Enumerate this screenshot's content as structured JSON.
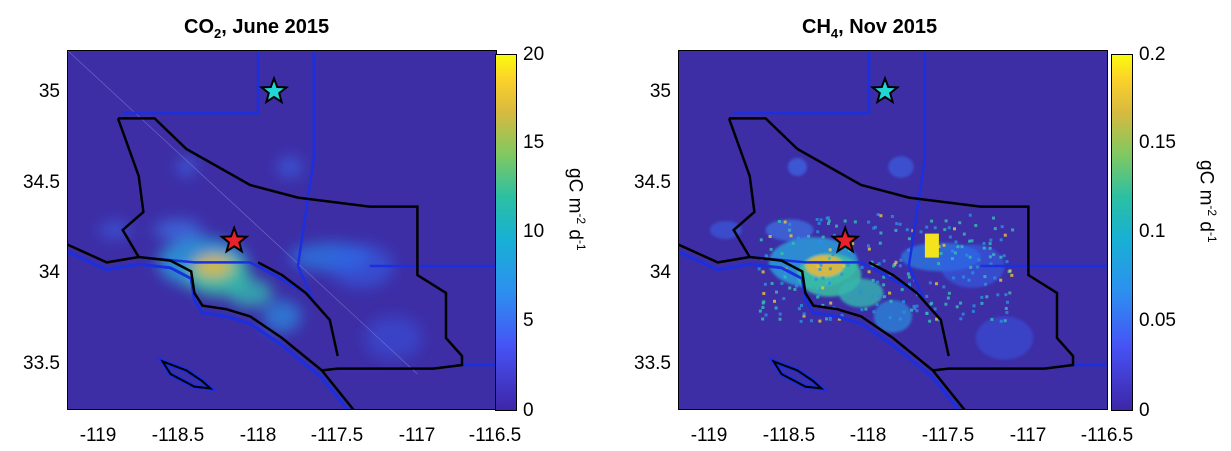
{
  "chart_data": [
    {
      "type": "heatmap",
      "title": "CO₂, June 2015",
      "title_main": "CO",
      "title_sub": "2",
      "title_rest": ", June 2015",
      "xlabel": "",
      "ylabel": "",
      "xlim": [
        -119.2,
        -116.5
      ],
      "ylim": [
        33.2,
        35.2
      ],
      "x_ticks": [
        "-119",
        "-118.5",
        "-118",
        "-117.5",
        "-117",
        "-116.5"
      ],
      "y_ticks": [
        "35",
        "34.5",
        "34",
        "33.5"
      ],
      "colorbar": {
        "ticks": [
          "20",
          "15",
          "10",
          "5",
          "0"
        ],
        "range": [
          0,
          20
        ],
        "label": "gC m-2 d-1",
        "label_parts": [
          "gC m",
          "-2",
          " d",
          "-1"
        ]
      },
      "markers": [
        {
          "name": "red-star",
          "lon": -118.15,
          "lat": 34.14,
          "color": "#e8222a"
        },
        {
          "name": "cyan-star",
          "lon": -117.9,
          "lat": 34.97,
          "color": "#22d6d6"
        }
      ]
    },
    {
      "type": "heatmap",
      "title": "CH₄, Nov 2015",
      "title_main": "CH",
      "title_sub": "4",
      "title_rest": ", Nov 2015",
      "xlabel": "",
      "ylabel": "",
      "xlim": [
        -119.2,
        -116.5
      ],
      "ylim": [
        33.2,
        35.2
      ],
      "x_ticks": [
        "-119",
        "-118.5",
        "-118",
        "-117.5",
        "-117",
        "-116.5"
      ],
      "y_ticks": [
        "35",
        "34.5",
        "34",
        "33.5"
      ],
      "colorbar": {
        "ticks": [
          "0.2",
          "0.15",
          "0.1",
          "0.05",
          "0"
        ],
        "range": [
          0,
          0.2
        ],
        "label": "gC m-2 d-1",
        "label_parts": [
          "gC m",
          "-2",
          " d",
          "-1"
        ]
      },
      "markers": [
        {
          "name": "red-star",
          "lon": -118.15,
          "lat": 34.14,
          "color": "#e8222a"
        },
        {
          "name": "cyan-star",
          "lon": -117.9,
          "lat": 34.97,
          "color": "#22d6d6"
        }
      ]
    }
  ],
  "colors": {
    "background": "#3d2ea6",
    "county_line": "#000000",
    "coast_buffer": "#1a2fe0"
  }
}
